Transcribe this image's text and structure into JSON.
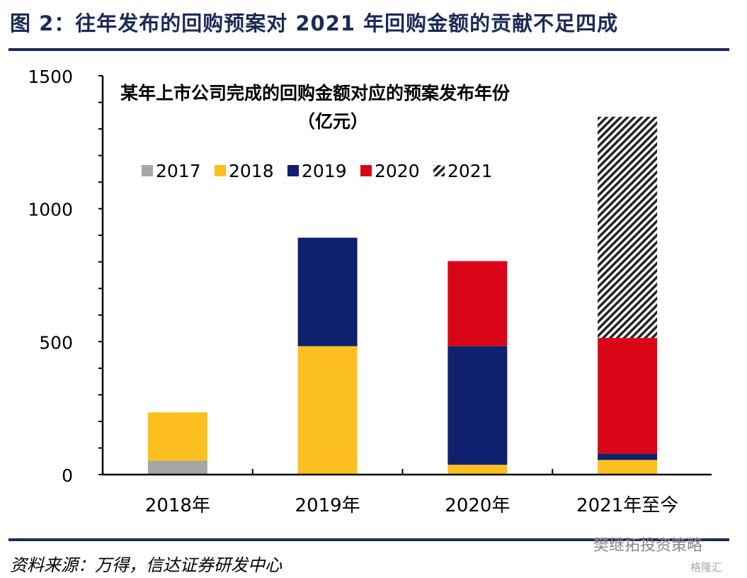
{
  "title": "图 2：往年发布的回购预案对 2021 年回购金额的贡献不足四成",
  "source": "资料来源：万得，信达证券研发中心",
  "watermark": "樊继拓投资策略",
  "watermark2": "格隆汇",
  "chart_data": {
    "type": "bar",
    "stacked": true,
    "title": "某年上市公司完成的回购金额对应的预案发布年份",
    "subtitle": "（亿元）",
    "categories": [
      "2018年",
      "2019年",
      "2020年",
      "2021年至今"
    ],
    "ylim": [
      0,
      1500
    ],
    "yticks": [
      0,
      500,
      1000,
      1500
    ],
    "legend_position": "top-left",
    "series": [
      {
        "name": "2017",
        "color": "#a6a6a6",
        "values": [
          52,
          0,
          0,
          0
        ]
      },
      {
        "name": "2018",
        "color": "#fbc020",
        "values": [
          182,
          483,
          37,
          55
        ]
      },
      {
        "name": "2019",
        "color": "#0f206e",
        "values": [
          0,
          408,
          446,
          24
        ]
      },
      {
        "name": "2020",
        "color": "#da0418",
        "values": [
          0,
          0,
          320,
          435
        ]
      },
      {
        "name": "2021",
        "color": "hatch",
        "values": [
          0,
          0,
          0,
          832
        ]
      }
    ]
  }
}
